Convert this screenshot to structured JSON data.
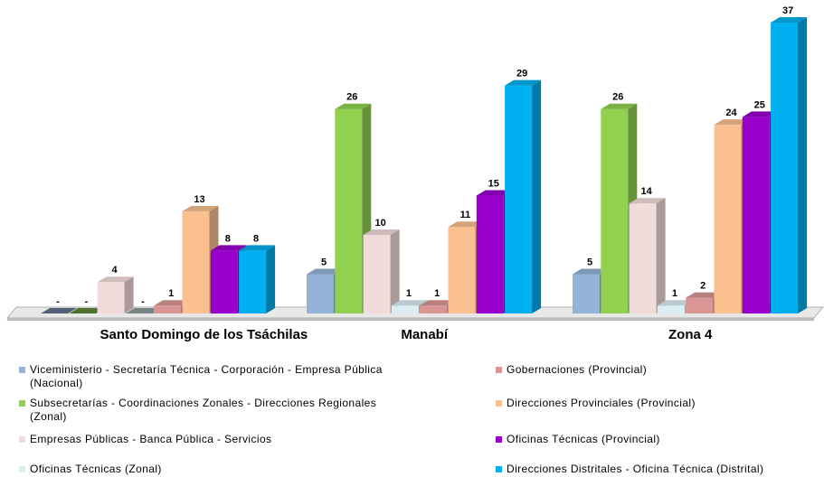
{
  "chart_data": {
    "type": "bar3d",
    "categories": [
      "Santo Domingo de los Tsáchilas",
      "Manabí",
      "Zona 4"
    ],
    "series": [
      {
        "name": "Viceministerio - Secretaría Técnica - Corporación - Empresa Pública (Nacional)",
        "color": "#95b3d7",
        "values": [
          0,
          5,
          5
        ],
        "value_labels": [
          "-",
          "5",
          "5"
        ]
      },
      {
        "name": "Subsecretarías - Coordinaciones Zonales - Direcciones Regionales (Zonal)",
        "color": "#92d050",
        "values": [
          0,
          26,
          26
        ],
        "value_labels": [
          "-",
          "26",
          "26"
        ]
      },
      {
        "name": "Empresas Públicas - Banca Pública - Servicios",
        "color": "#f2dcdb",
        "values": [
          4,
          10,
          14
        ]
      },
      {
        "name": "Oficinas Técnicas (Zonal)",
        "color": "#dbeef4",
        "values": [
          0,
          1,
          1
        ],
        "value_labels": [
          "-",
          "1",
          "1"
        ]
      },
      {
        "name": "Gobernaciones (Provincial)",
        "color": "#d99694",
        "values": [
          1,
          1,
          2
        ]
      },
      {
        "name": "Direcciones Provinciales (Provincial)",
        "color": "#fac090",
        "values": [
          13,
          11,
          24
        ]
      },
      {
        "name": "Oficinas Técnicas  (Provincial)",
        "color": "#9900cc",
        "values": [
          8,
          15,
          25
        ]
      },
      {
        "name": "Direcciones Distritales - Oficina Técnica (Distrital)",
        "color": "#00b0f0",
        "values": [
          8,
          29,
          37
        ]
      }
    ]
  }
}
